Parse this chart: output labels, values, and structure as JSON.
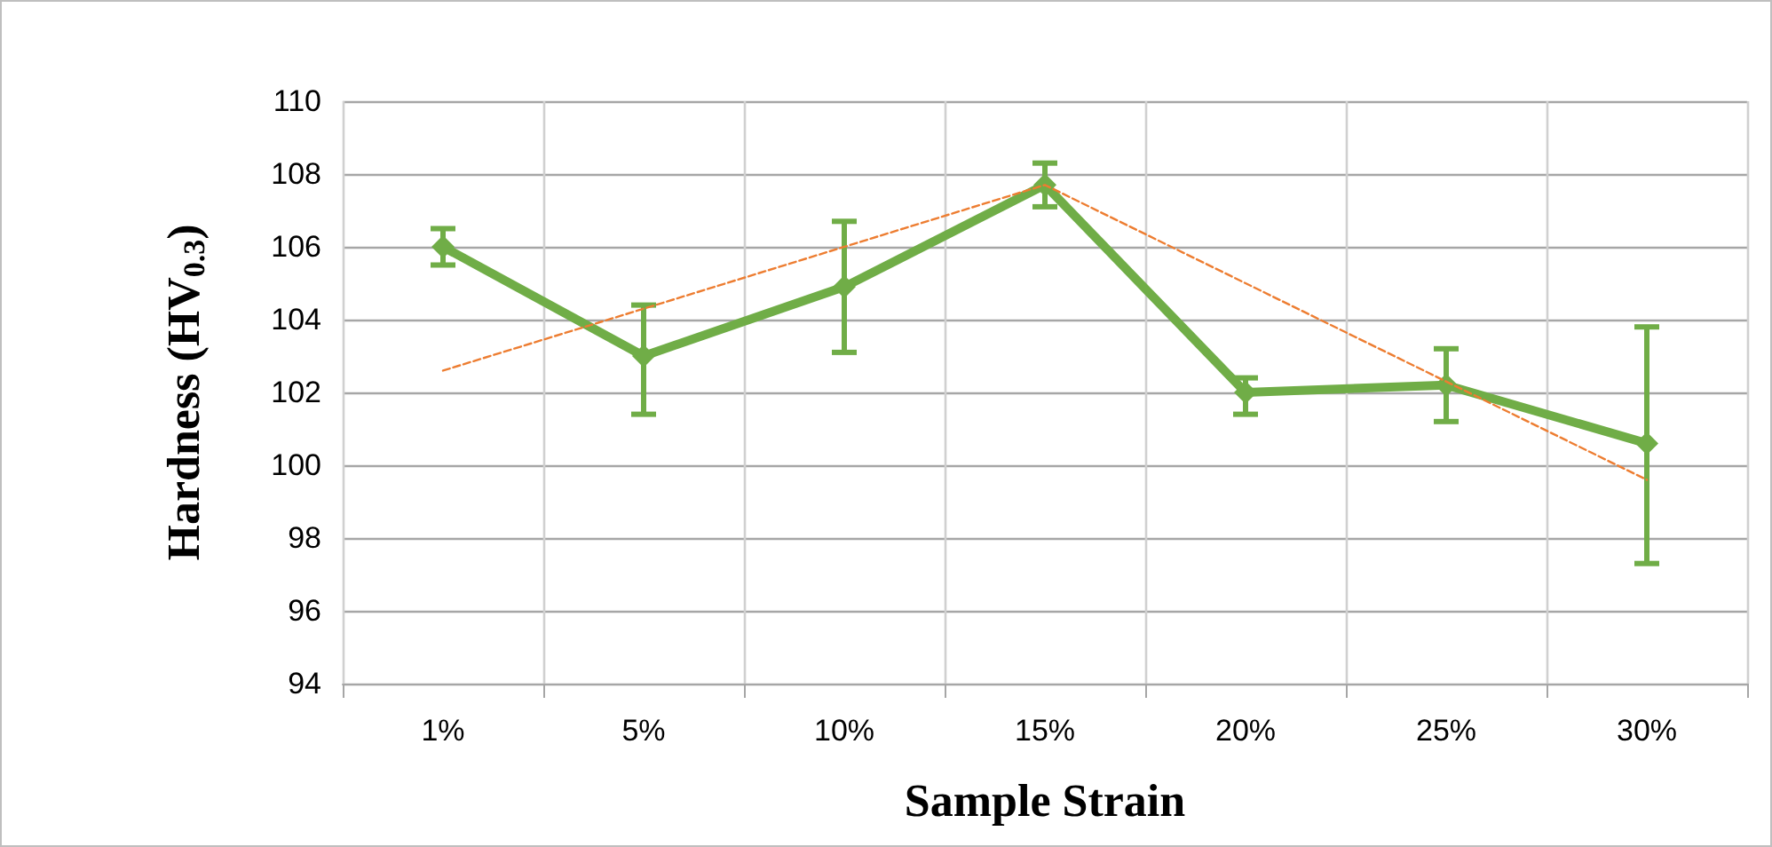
{
  "chart_data": {
    "type": "line",
    "xlabel": "Sample Strain",
    "ylabel": "Hardness (HV$_{0.3}$)",
    "categories": [
      "1%",
      "5%",
      "10%",
      "15%",
      "20%",
      "25%",
      "30%"
    ],
    "series": [
      {
        "color": "#70ad47",
        "values": [
          106.0,
          103.0,
          104.9,
          107.7,
          102.0,
          102.2,
          100.6
        ],
        "errors": [
          [
            105.5,
            106.5
          ],
          [
            101.4,
            104.4
          ],
          [
            103.1,
            106.7
          ],
          [
            107.1,
            108.3
          ],
          [
            101.4,
            102.4
          ],
          [
            101.2,
            103.2
          ],
          [
            97.3,
            103.8
          ]
        ],
        "marker": "diamond",
        "line_style": "solid"
      },
      {
        "color": "#ed7d31",
        "values": [
          102.6,
          null,
          null,
          107.7,
          null,
          null,
          99.6
        ],
        "marker": "none",
        "line_style": "dashed"
      }
    ],
    "ylim": [
      94,
      110
    ],
    "yticks": [
      94,
      96,
      98,
      100,
      102,
      104,
      106,
      108,
      110
    ],
    "grid": true
  }
}
